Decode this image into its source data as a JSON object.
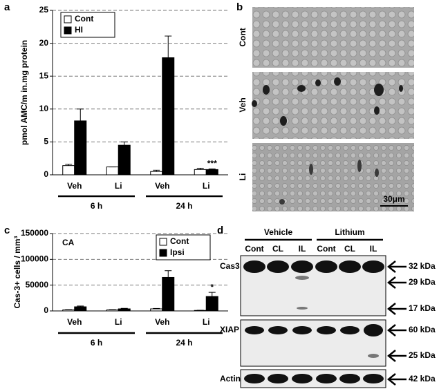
{
  "panel_labels": [
    "a",
    "b",
    "c",
    "d"
  ],
  "chart_data": [
    {
      "type": "bar",
      "ylabel": "pmol AMC/m in.mg protein",
      "categories": [
        "Veh",
        "Li",
        "Veh",
        "Li"
      ],
      "groups": [
        "6 h",
        "24 h"
      ],
      "series": [
        {
          "name": "Cont",
          "color": "#ffffff",
          "values": [
            1.4,
            1.2,
            0.5,
            0.8
          ],
          "errors": [
            0.2,
            0,
            0.2,
            0.2
          ],
          "annotations": [
            null,
            null,
            null,
            null
          ]
        },
        {
          "name": "HI",
          "color": "#000000",
          "values": [
            8.2,
            4.5,
            17.8,
            0.8
          ],
          "errors": [
            1.8,
            0.5,
            3.3,
            0.1
          ],
          "annotations": [
            null,
            null,
            null,
            "***"
          ]
        }
      ],
      "ylim": [
        0,
        25
      ],
      "yticks": [
        0,
        5,
        10,
        15,
        20,
        25
      ],
      "grid": true
    },
    {
      "type": "bar",
      "ylabel": "Cas-3+ cells / mm³",
      "inset_label": "CA",
      "categories": [
        "Veh",
        "Li",
        "Veh",
        "Li"
      ],
      "groups": [
        "6 h",
        "24 h"
      ],
      "series": [
        {
          "name": "Cont",
          "color": "#ffffff",
          "values": [
            2000,
            2000,
            4000,
            1000
          ],
          "errors": [
            500,
            500,
            800,
            300
          ],
          "annotations": [
            null,
            null,
            null,
            null
          ]
        },
        {
          "name": "Ipsi",
          "color": "#000000",
          "values": [
            8000,
            4000,
            65000,
            28000
          ],
          "errors": [
            1500,
            1000,
            13000,
            8000
          ],
          "annotations": [
            null,
            null,
            null,
            "*"
          ]
        }
      ],
      "ylim": [
        0,
        150000
      ],
      "yticks": [
        0,
        50000,
        100000,
        150000
      ],
      "grid": true
    }
  ],
  "histology": {
    "rows": [
      "Cont",
      "Veh",
      "Li"
    ],
    "scale_bar": "30μm"
  },
  "blot": {
    "conditions": [
      "Vehicle",
      "Lithium"
    ],
    "lanes": [
      "Cont",
      "CL",
      "IL",
      "Cont",
      "CL",
      "IL"
    ],
    "blots": [
      {
        "name": "Cas3",
        "markers": [
          "32 kDa",
          "29 kDa",
          "17 kDa"
        ]
      },
      {
        "name": "XIAP",
        "markers": [
          "60 kDa",
          "25 kDa"
        ]
      },
      {
        "name": "Actin",
        "markers": [
          "42 kDa"
        ]
      }
    ]
  }
}
